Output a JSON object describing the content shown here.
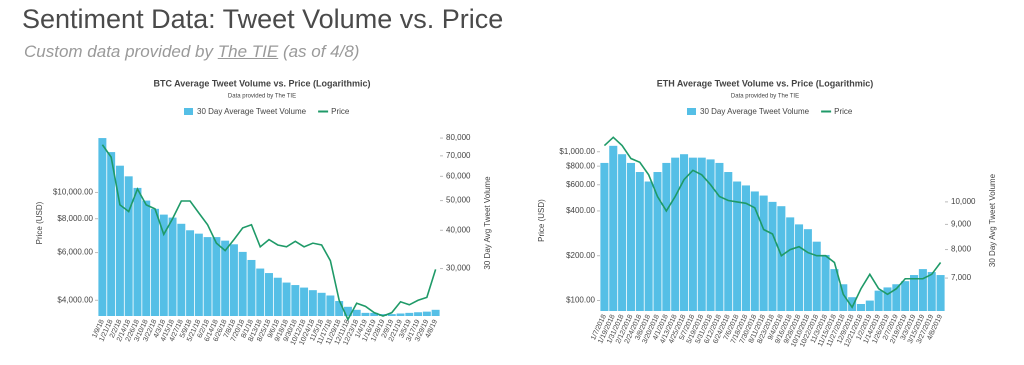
{
  "header": {
    "title": "Sentiment Data: Tweet Volume vs. Price",
    "subtitle_prefix": "Custom data provided by",
    "subtitle_link": "The TIE",
    "subtitle_suffix": "(as of 4/8)"
  },
  "chart_data": [
    {
      "type": "combo",
      "title": "BTC Average Tweet Volume vs. Price (Logarithmic)",
      "subtitle": "Data provided by The TIE",
      "y_label": "Price (USD)",
      "y2_label": "30 Day Avg Tweet Volume",
      "log_scale": true,
      "categories": [
        "1/9/18",
        "1/21/18",
        "2/2/18",
        "2/14/18",
        "2/26/18",
        "3/10/18",
        "3/22/18",
        "4/3/18",
        "4/15/18",
        "4/27/18",
        "5/9/18",
        "5/21/18",
        "6/2/18",
        "6/14/18",
        "6/26/18",
        "7/8/18",
        "7/20/18",
        "8/1/18",
        "8/13/18",
        "8/25/18",
        "9/6/18",
        "9/18/18",
        "9/30/18",
        "10/12/18",
        "10/24/18",
        "11/5/18",
        "11/17/18",
        "11/29/18",
        "12/11/18",
        "12/23/18",
        "1/4/19",
        "1/16/19",
        "1/28/19",
        "2/9/19",
        "2/21/19",
        "3/5/19",
        "3/17/19",
        "3/29/19",
        "4/8/19"
      ],
      "series": [
        {
          "name": "30 Day Average Tweet Volume",
          "type": "bar",
          "axis": "y2",
          "color": "#55bfe6",
          "values": [
            80000,
            72000,
            65000,
            60000,
            55000,
            50000,
            47000,
            45000,
            44000,
            42000,
            40000,
            39000,
            38000,
            38000,
            37000,
            36000,
            34000,
            32000,
            30000,
            29000,
            28000,
            27000,
            26500,
            26000,
            25500,
            25000,
            24500,
            23500,
            22500,
            22000,
            21500,
            21500,
            21300,
            21300,
            21400,
            21500,
            21600,
            21700,
            22000
          ]
        },
        {
          "name": "Price",
          "type": "line",
          "color": "#1f9a68",
          "values": [
            15000,
            13500,
            9000,
            8500,
            10300,
            9000,
            8700,
            7000,
            8000,
            9300,
            9300,
            8400,
            7600,
            6500,
            6100,
            6700,
            7400,
            7600,
            6300,
            6700,
            6400,
            6300,
            6600,
            6300,
            6500,
            6400,
            5600,
            4000,
            3400,
            3900,
            3800,
            3600,
            3500,
            3600,
            3950,
            3850,
            4000,
            4100,
            5200
          ]
        }
      ],
      "ylim": [
        3500,
        17000
      ],
      "yticks": [
        {
          "value": 4000,
          "label": "$4,000.00"
        },
        {
          "value": 6000,
          "label": "$6,000.00"
        },
        {
          "value": 8000,
          "label": "$8,000.00"
        },
        {
          "value": 10000,
          "label": "$10,000.00"
        }
      ],
      "y2lim": [
        21000,
        85000
      ],
      "y2ticks": [
        {
          "value": 30000,
          "label": "30,000"
        },
        {
          "value": 40000,
          "label": "40,000"
        },
        {
          "value": 50000,
          "label": "50,000"
        },
        {
          "value": 60000,
          "label": "60,000"
        },
        {
          "value": 70000,
          "label": "70,000"
        },
        {
          "value": 80000,
          "label": "80,000"
        }
      ]
    },
    {
      "type": "combo",
      "title": "ETH Average Tweet Volume vs. Price (Logarithmic)",
      "subtitle": "Data provided by The TIE",
      "y_label": "Price (USD)",
      "y2_label": "30 Day Avg Tweet Volume",
      "log_scale": true,
      "categories": [
        "1/7/2018",
        "1/19/2018",
        "1/31/2018",
        "2/12/2018",
        "2/24/2018",
        "3/8/2018",
        "3/20/2018",
        "4/1/2018",
        "4/13/2018",
        "4/25/2018",
        "5/7/2018",
        "5/19/2018",
        "5/31/2018",
        "6/12/2018",
        "6/24/2018",
        "7/6/2018",
        "7/18/2018",
        "7/30/2018",
        "8/11/2018",
        "8/23/2018",
        "9/4/2018",
        "9/16/2018",
        "9/28/2018",
        "10/10/2018",
        "10/22/2018",
        "11/3/2018",
        "11/15/2018",
        "11/27/2018",
        "12/9/2018",
        "12/21/2018",
        "1/2/2019",
        "1/14/2019",
        "1/26/2019",
        "2/7/2019",
        "2/19/2019",
        "3/3/2019",
        "3/15/2019",
        "3/27/2019",
        "4/8/2019"
      ],
      "series": [
        {
          "name": "30 Day Average Tweet Volume",
          "type": "bar",
          "axis": "y2",
          "color": "#55bfe6",
          "values": [
            12000,
            13000,
            12500,
            12000,
            11500,
            11000,
            11500,
            12000,
            12300,
            12500,
            12300,
            12300,
            12200,
            12000,
            11500,
            11000,
            10800,
            10500,
            10300,
            10000,
            9800,
            9300,
            9000,
            8800,
            8300,
            7800,
            7300,
            6800,
            6400,
            6200,
            6300,
            6600,
            6700,
            6800,
            6900,
            7100,
            7300,
            7200,
            7100
          ]
        },
        {
          "name": "Price",
          "type": "line",
          "color": "#1f9a68",
          "values": [
            1100,
            1250,
            1100,
            900,
            850,
            700,
            500,
            400,
            500,
            650,
            750,
            700,
            600,
            500,
            470,
            460,
            450,
            420,
            300,
            280,
            200,
            220,
            230,
            210,
            200,
            200,
            180,
            110,
            90,
            120,
            150,
            120,
            110,
            120,
            140,
            140,
            140,
            150,
            180
          ]
        }
      ],
      "ylim": [
        85,
        1400
      ],
      "yticks": [
        {
          "value": 100,
          "label": "$100.00"
        },
        {
          "value": 200,
          "label": "$200.00"
        },
        {
          "value": 400,
          "label": "$400.00"
        },
        {
          "value": 600,
          "label": "$600.00"
        },
        {
          "value": 800,
          "label": "$800.00"
        },
        {
          "value": 1000,
          "label": "$1,000.00"
        }
      ],
      "y2lim": [
        6000,
        14000
      ],
      "y2ticks": [
        {
          "value": 7000,
          "label": "7,000"
        },
        {
          "value": 8000,
          "label": "8,000"
        },
        {
          "value": 9000,
          "label": "9,000"
        },
        {
          "value": 10000,
          "label": "10,000"
        }
      ]
    }
  ]
}
